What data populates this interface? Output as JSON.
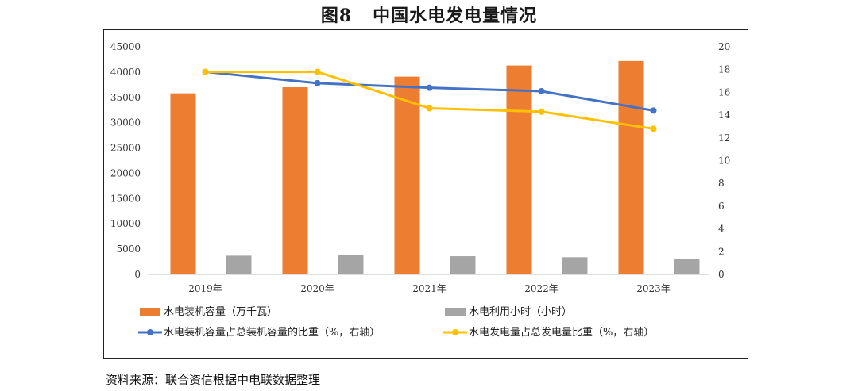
{
  "title_num": "图8",
  "title_text": "中国水电发电量情况",
  "source": "资料来源：联合资信根据中电联数据整理",
  "chart_data": {
    "type": "bar",
    "categories": [
      "2019年",
      "2020年",
      "2021年",
      "2022年",
      "2023年"
    ],
    "ylim": [
      0,
      45000
    ],
    "y2lim": [
      0,
      20
    ],
    "yticks": [
      "0",
      "5000",
      "10000",
      "15000",
      "20000",
      "25000",
      "30000",
      "35000",
      "40000",
      "45000"
    ],
    "y2ticks": [
      "0",
      "2",
      "4",
      "6",
      "8",
      "10",
      "12",
      "14",
      "16",
      "18",
      "20"
    ],
    "series": [
      {
        "name": "水电装机容量（万千瓦）",
        "kind": "bar",
        "axis": "left",
        "color": "#ED7D31",
        "values": [
          35800,
          37000,
          39100,
          41300,
          42200
        ]
      },
      {
        "name": "水电利用小时（小时）",
        "kind": "bar",
        "axis": "left",
        "color": "#A5A5A5",
        "values": [
          3700,
          3800,
          3600,
          3400,
          3100
        ]
      },
      {
        "name": "水电装机容量占总装机容量的比重（%，右轴）",
        "kind": "line",
        "axis": "right",
        "color": "#4472C4",
        "values": [
          17.8,
          16.8,
          16.4,
          16.1,
          14.4
        ]
      },
      {
        "name": "水电发电量占总发电量比重（%，右轴）",
        "kind": "line",
        "axis": "right",
        "color": "#FFC000",
        "values": [
          17.8,
          17.8,
          14.6,
          14.3,
          12.8
        ]
      }
    ]
  }
}
